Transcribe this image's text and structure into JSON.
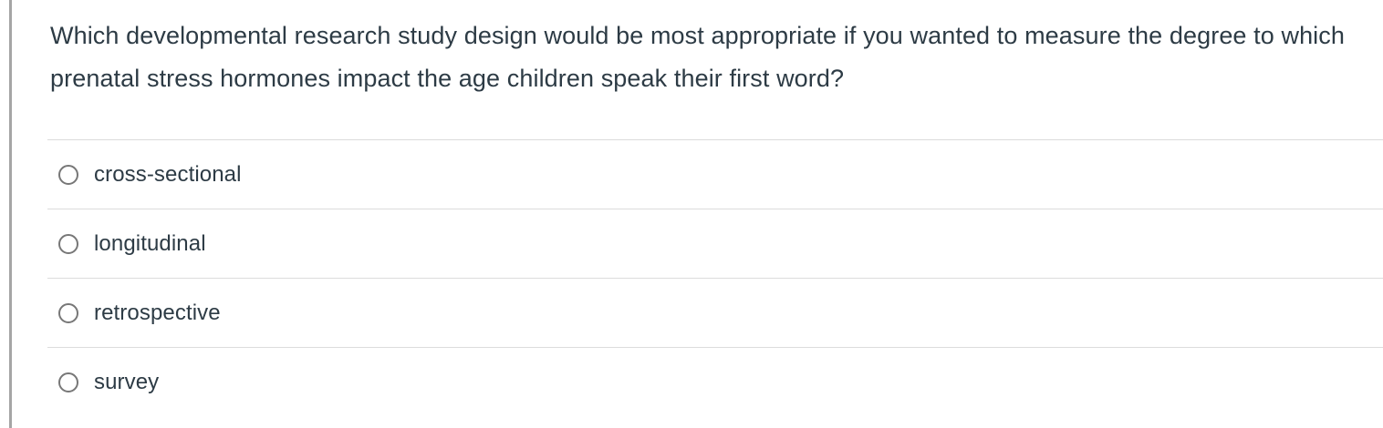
{
  "question": {
    "text": "Which developmental research study design would be most appropriate if you wanted to measure the degree to which prenatal stress hormones impact the age children speak their first word?"
  },
  "options": [
    {
      "label": "cross-sectional",
      "selected": false
    },
    {
      "label": "longitudinal",
      "selected": false
    },
    {
      "label": "retrospective",
      "selected": false
    },
    {
      "label": "survey",
      "selected": false
    }
  ],
  "colors": {
    "text": "#2d3b45",
    "divider": "#dcdcdc",
    "left_border": "#a5a5a5",
    "radio_border": "#777777",
    "background": "#ffffff"
  }
}
